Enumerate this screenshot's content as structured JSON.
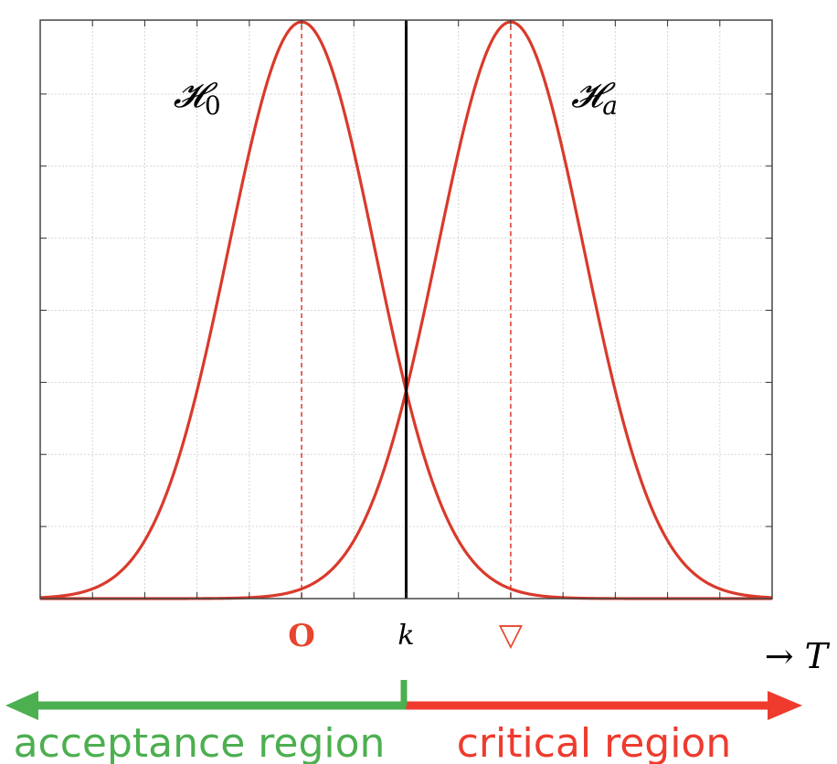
{
  "chart_data": {
    "type": "line",
    "grid": true,
    "xlim": [
      -5,
      9
    ],
    "ylim": [
      0,
      1
    ],
    "x_gridlines": [
      -4,
      -3,
      -2,
      -1,
      0,
      1,
      2,
      3,
      4,
      5,
      6,
      7,
      8
    ],
    "y_gridlines": [
      0.125,
      0.25,
      0.375,
      0.5,
      0.625,
      0.75,
      0.875
    ],
    "series": [
      {
        "name": "𝓗0",
        "mean": 0,
        "sd": 1.4,
        "peak": 1.0,
        "color": "#d93a2b"
      },
      {
        "name": "𝓗a",
        "mean": 4,
        "sd": 1.4,
        "peak": 1.0,
        "color": "#d93a2b"
      }
    ],
    "series_labels": [
      {
        "text": "𝓗",
        "sub": "0",
        "x": -2.0,
        "y": 0.875
      },
      {
        "text": "𝓗",
        "sub": "a",
        "x": 5.6,
        "y": 0.875
      }
    ],
    "threshold": {
      "x": 2,
      "color": "#000000"
    },
    "x_markers": [
      {
        "x": 0,
        "label": "O",
        "color": "#e8452c"
      },
      {
        "x": 2,
        "label": "k",
        "color": "#000000"
      },
      {
        "x": 4,
        "label": "▽",
        "color": "#e8452c"
      }
    ],
    "axis_label": "→ T",
    "regions": [
      {
        "label": "acceptance region",
        "color": "#4caf50",
        "from": "left-edge",
        "to": "k"
      },
      {
        "label": "critical region",
        "color": "#ee3b2e",
        "from": "k",
        "to": "right-edge"
      }
    ]
  }
}
